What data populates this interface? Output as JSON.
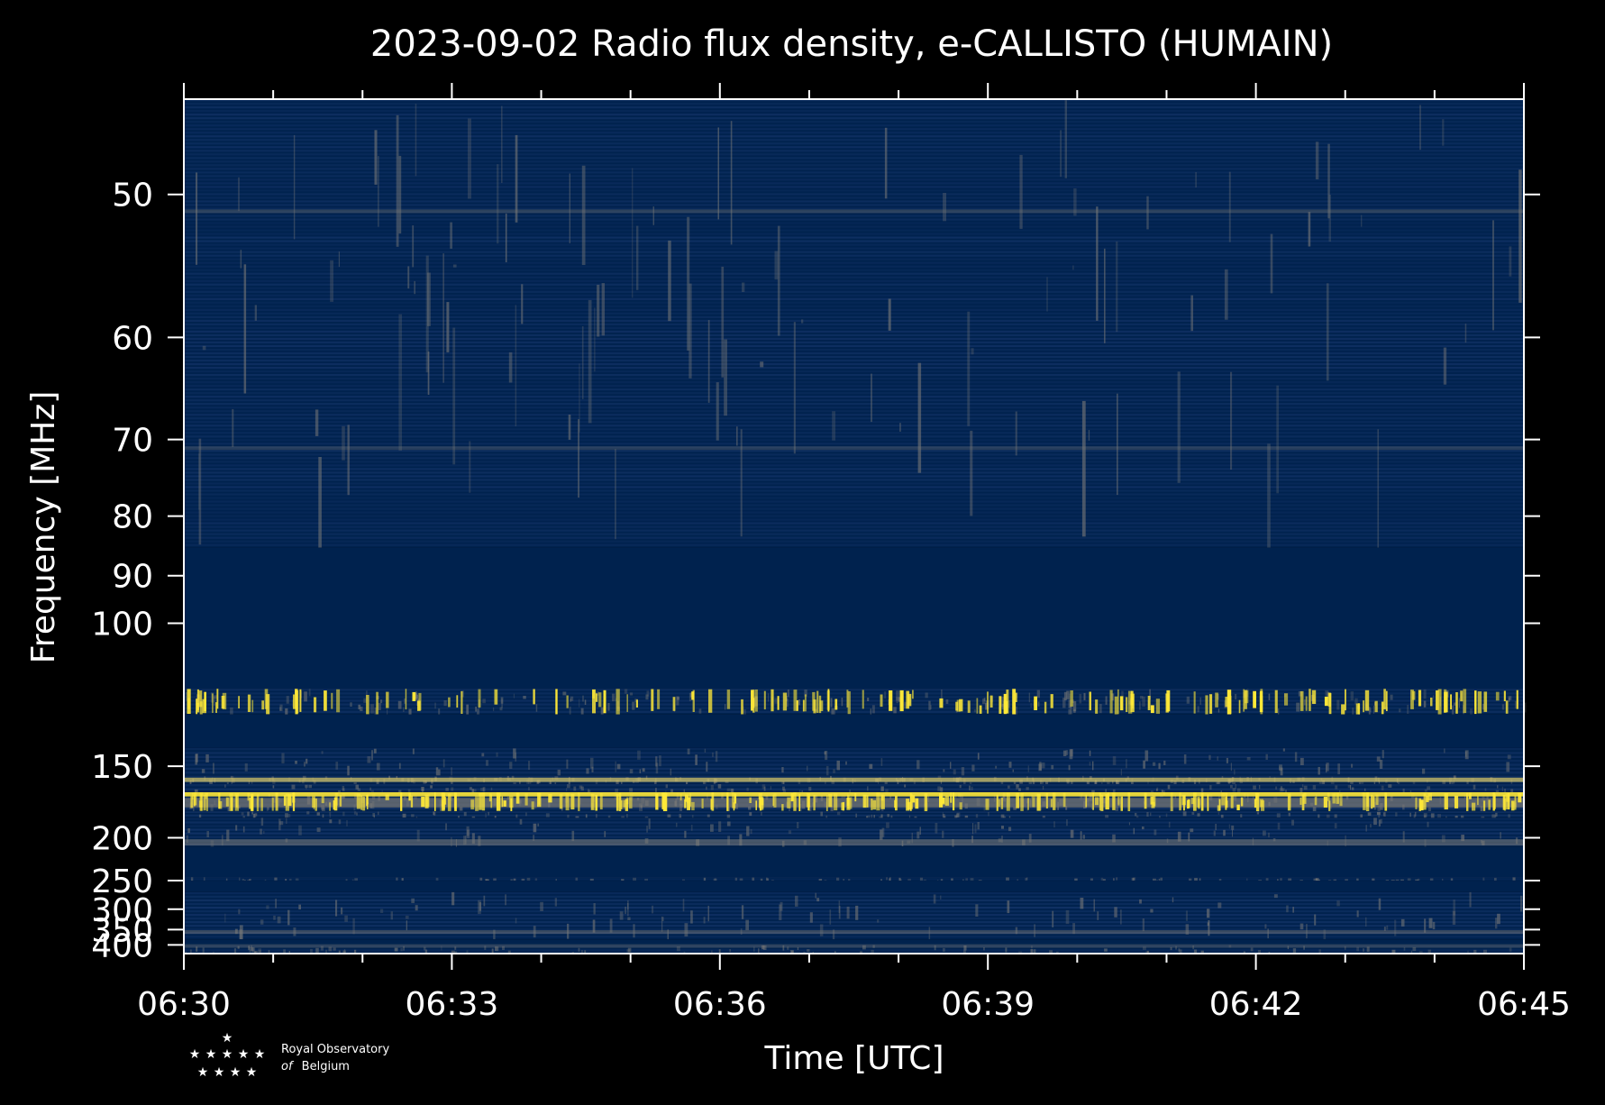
{
  "chart_data": {
    "type": "heatmap",
    "title": "2023-09-02 Radio flux density, e-CALLISTO (HUMAIN)",
    "xlabel": "Time [UTC]",
    "ylabel": "Frequency [MHz]",
    "x_ticks": [
      "06:30",
      "06:33",
      "06:36",
      "06:39",
      "06:42",
      "06:45"
    ],
    "x_range": [
      "06:30",
      "06:45"
    ],
    "y_ticks": [
      50,
      60,
      70,
      80,
      90,
      100,
      150,
      200,
      250,
      300,
      350,
      400
    ],
    "y_range": [
      45,
      435
    ],
    "y_scale": "reciprocal",
    "colors": {
      "background": "#000000",
      "low": "#00224e",
      "mid": "#7c7b78",
      "high": "#fee838"
    },
    "bands": [
      {
        "f0": 45,
        "f1": 85,
        "level": "low-noise"
      },
      {
        "f0": 85,
        "f1": 118,
        "level": "empty"
      },
      {
        "f0": 118,
        "f1": 127,
        "level": "bright-bursty"
      },
      {
        "f0": 127,
        "f1": 141,
        "level": "empty"
      },
      {
        "f0": 141,
        "f1": 155,
        "level": "noise"
      },
      {
        "f0": 155,
        "f1": 160,
        "level": "bright-steady"
      },
      {
        "f0": 160,
        "f1": 165,
        "level": "noise"
      },
      {
        "f0": 165,
        "f1": 178,
        "level": "very-bright-bursty"
      },
      {
        "f0": 178,
        "f1": 183,
        "level": "noise"
      },
      {
        "f0": 183,
        "f1": 209,
        "level": "noise-line"
      },
      {
        "f0": 209,
        "f1": 245,
        "level": "empty"
      },
      {
        "f0": 245,
        "f1": 250,
        "level": "low-noise"
      },
      {
        "f0": 250,
        "f1": 268,
        "level": "empty"
      },
      {
        "f0": 268,
        "f1": 380,
        "level": "noise"
      },
      {
        "f0": 380,
        "f1": 400,
        "level": "empty"
      },
      {
        "f0": 400,
        "f1": 435,
        "level": "low-noise"
      }
    ]
  },
  "logo": {
    "line1": "Royal Observatory",
    "line2_italic": "of",
    "line2": "Belgium"
  }
}
